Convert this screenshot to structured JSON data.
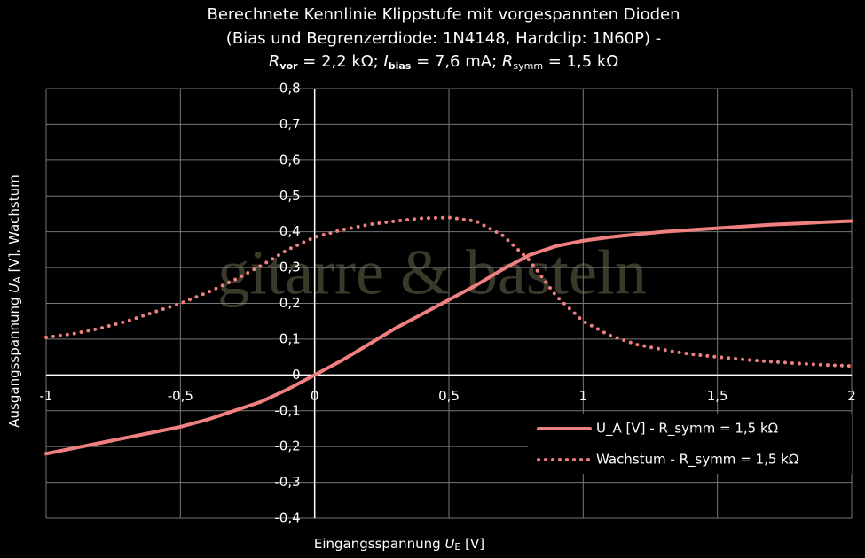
{
  "chart_data": {
    "type": "line",
    "title": "Berechnete Kennlinie Klippstufe mit vorgespannten Dioden",
    "subtitle": "(Bias und Begrenzerdiode: 1N4148, Hardclip: 1N60P) -",
    "subtitle2": [
      "R",
      "vor",
      " = 2,2 kΩ; ",
      "I",
      "bias",
      " = 7,6 mA; ",
      "R",
      "symm",
      " = 1,5 kΩ"
    ],
    "xlabel": [
      "Eingangsspannung ",
      "U",
      "E",
      " [V]"
    ],
    "ylabel": [
      "Ausgangsspannung ",
      "U",
      "A",
      " [V], Wachstum"
    ],
    "watermark": "gitarre & basteln",
    "x": [
      -1,
      -0.9,
      -0.8,
      -0.7,
      -0.6,
      -0.5,
      -0.4,
      -0.3,
      -0.2,
      -0.1,
      0,
      0.1,
      0.2,
      0.3,
      0.4,
      0.5,
      0.6,
      0.7,
      0.8,
      0.9,
      1,
      1.1,
      1.2,
      1.3,
      1.4,
      1.5,
      1.6,
      1.7,
      1.8,
      1.9,
      2
    ],
    "series": [
      {
        "name": "U_A [V] - R_symm = 1,5 kΩ",
        "color": "#f08080",
        "style": "solid",
        "values": [
          -0.22,
          -0.205,
          -0.19,
          -0.175,
          -0.16,
          -0.145,
          -0.125,
          -0.1,
          -0.075,
          -0.04,
          0,
          0.04,
          0.085,
          0.13,
          0.17,
          0.21,
          0.25,
          0.295,
          0.335,
          0.36,
          0.375,
          0.385,
          0.393,
          0.4,
          0.405,
          0.41,
          0.415,
          0.42,
          0.423,
          0.427,
          0.43
        ]
      },
      {
        "name": "Wachstum - R_symm = 1,5 kΩ",
        "color": "#f08080",
        "style": "dotted",
        "values": [
          0.105,
          0.115,
          0.13,
          0.15,
          0.175,
          0.2,
          0.23,
          0.265,
          0.305,
          0.35,
          0.385,
          0.405,
          0.42,
          0.43,
          0.438,
          0.44,
          0.43,
          0.39,
          0.32,
          0.22,
          0.15,
          0.11,
          0.085,
          0.07,
          0.058,
          0.05,
          0.043,
          0.037,
          0.032,
          0.028,
          0.025
        ]
      }
    ],
    "xlim": [
      -1,
      2
    ],
    "xticks": [
      -1,
      {
        "value": -0.5,
        "label": "-0,5"
      },
      0,
      {
        "value": 0.5,
        "label": "0,5"
      },
      1,
      {
        "value": 1.5,
        "label": "1,5"
      },
      2
    ],
    "ylim": [
      -0.4,
      0.8
    ],
    "yticks": [
      {
        "value": -0.4,
        "label": "-0,4"
      },
      {
        "value": -0.3,
        "label": "-0,3"
      },
      {
        "value": -0.2,
        "label": "-0,2"
      },
      {
        "value": -0.1,
        "label": "-0,1"
      },
      0,
      {
        "value": 0.1,
        "label": "0,1"
      },
      {
        "value": 0.2,
        "label": "0,2"
      },
      {
        "value": 0.3,
        "label": "0,3"
      },
      {
        "value": 0.4,
        "label": "0,4"
      },
      {
        "value": 0.5,
        "label": "0,5"
      },
      {
        "value": 0.6,
        "label": "0,6"
      },
      {
        "value": 0.7,
        "label": "0,7"
      },
      {
        "value": 0.8,
        "label": "0,8"
      }
    ],
    "grid": true,
    "legend": "lower right"
  }
}
